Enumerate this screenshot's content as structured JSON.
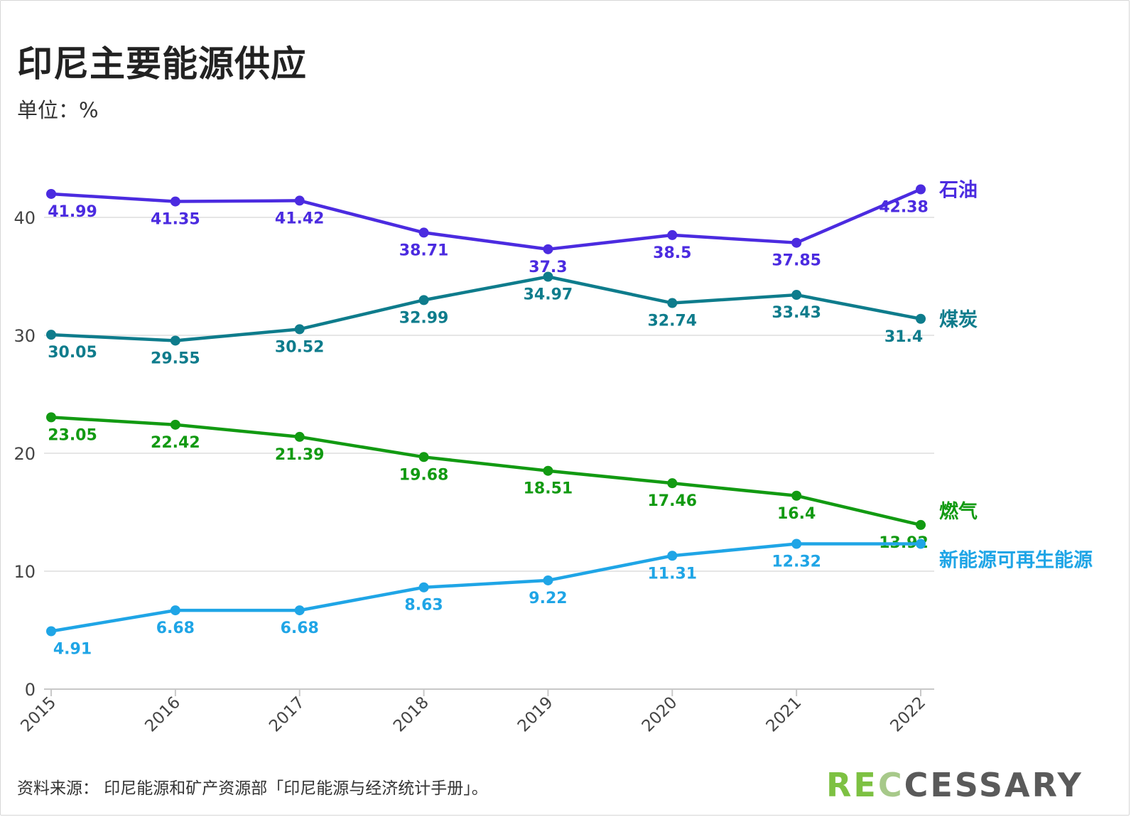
{
  "title": "印尼主要能源供应",
  "subtitle": "单位：%",
  "source": "资料来源： 印尼能源和矿产资源部「印尼能源与经济统计手册」。",
  "logo": {
    "part1": "RE",
    "part2": "C",
    "part3": "CESSARY"
  },
  "chart_data": {
    "type": "line",
    "x": [
      "2015",
      "2016",
      "2017",
      "2018",
      "2019",
      "2020",
      "2021",
      "2022"
    ],
    "ylim": [
      0,
      45
    ],
    "yticks": [
      0,
      10,
      20,
      30,
      40
    ],
    "grid": true,
    "series": [
      {
        "name": "石油",
        "color": "#4b2be0",
        "values": [
          41.99,
          41.35,
          41.42,
          38.71,
          37.3,
          38.5,
          37.85,
          42.38
        ],
        "labels": [
          "41.99",
          "41.35",
          "41.42",
          "38.71",
          "37.3",
          "38.5",
          "37.85",
          "42.38"
        ]
      },
      {
        "name": "煤炭",
        "color": "#0e7c8c",
        "values": [
          30.05,
          29.55,
          30.52,
          32.99,
          34.97,
          32.74,
          33.43,
          31.4
        ],
        "labels": [
          "30.05",
          "29.55",
          "30.52",
          "32.99",
          "34.97",
          "32.74",
          "33.43",
          "31.4"
        ]
      },
      {
        "name": "燃气",
        "color": "#129a12",
        "values": [
          23.05,
          22.42,
          21.39,
          19.68,
          18.51,
          17.46,
          16.4,
          13.92
        ],
        "labels": [
          "23.05",
          "22.42",
          "21.39",
          "19.68",
          "18.51",
          "17.46",
          "16.4",
          "13.92"
        ]
      },
      {
        "name": "新能源可再生能源",
        "color": "#1fa5e6",
        "values": [
          4.91,
          6.68,
          6.68,
          8.63,
          9.22,
          11.31,
          12.32,
          12.32
        ],
        "labels": [
          "4.91",
          "6.68",
          "6.68",
          "8.63",
          "9.22",
          "11.31",
          "12.32",
          ""
        ]
      }
    ]
  }
}
